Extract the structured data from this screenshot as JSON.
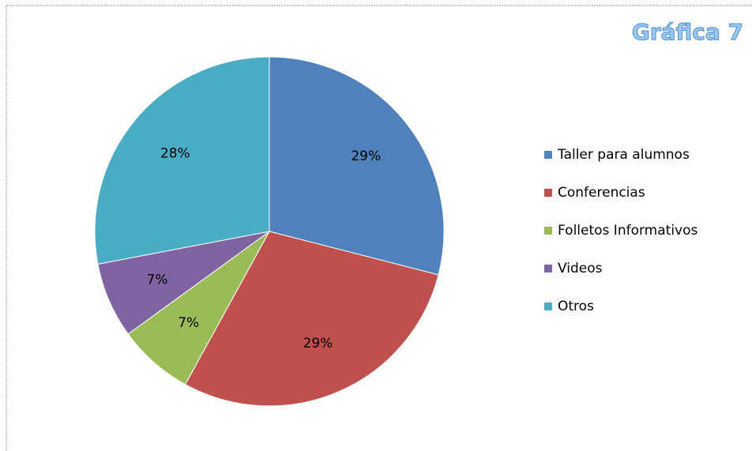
{
  "chart_data": {
    "type": "pie",
    "title": "Gráfica 7",
    "categories": [
      "Taller para alumnos",
      "Conferencias",
      "Folletos Informativos",
      "Videos",
      "Otros"
    ],
    "values": [
      29,
      29,
      7,
      7,
      28
    ],
    "value_labels": [
      "29%",
      "29%",
      "7%",
      "7%",
      "28%"
    ],
    "colors": [
      "#4f81bd",
      "#c0504d",
      "#9bbb59",
      "#8064a2",
      "#4bacc6"
    ],
    "legend": "right"
  }
}
